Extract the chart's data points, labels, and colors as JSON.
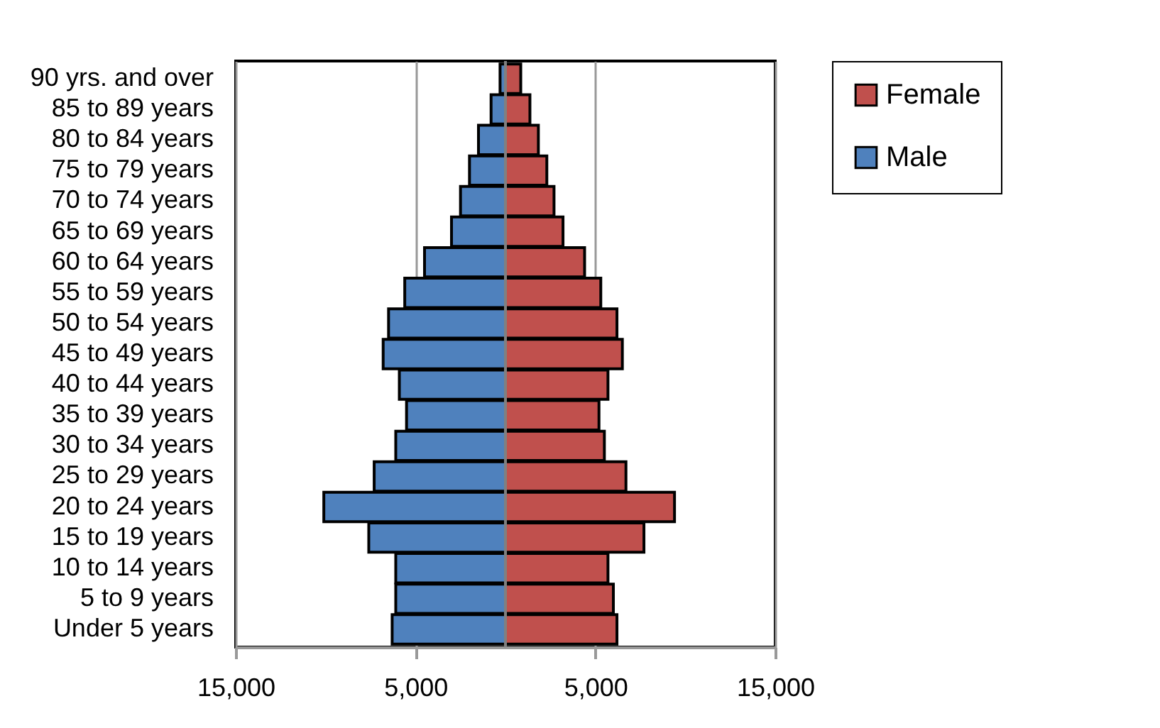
{
  "chart_data": {
    "type": "bar",
    "orientation": "horizontal",
    "categories": [
      "90 yrs. and over",
      "85 to 89 years",
      "80 to 84 years",
      "75 to 79 years",
      "70 to 74 years",
      "65 to 69 years",
      "60 to 64 years",
      "55 to 59 years",
      "50 to 54 years",
      "45 to 49 years",
      "40 to 44 years",
      "35 to 39 years",
      "30 to 34 years",
      "25 to 29 years",
      "20 to 24 years",
      "15 to 19 years",
      "10 to 14 years",
      "5 to 9 years",
      "Under 5 years"
    ],
    "series": [
      {
        "name": "Female",
        "color": "#c0504d",
        "values": [
          850,
          1360,
          1830,
          2300,
          2700,
          3200,
          4400,
          5300,
          6200,
          6500,
          5700,
          5200,
          5500,
          6700,
          9400,
          7700,
          5700,
          6000,
          6200
        ]
      },
      {
        "name": "Male",
        "color": "#4f81bd",
        "values": [
          -300,
          -800,
          -1500,
          -2000,
          -2500,
          -3000,
          -4500,
          -5600,
          -6500,
          -6800,
          -5900,
          -5500,
          -6100,
          -7300,
          -10100,
          -7600,
          -6100,
          -6100,
          -6300
        ]
      }
    ],
    "xlim": [
      -15000,
      15000
    ],
    "xticks": [
      {
        "value": -15000,
        "label": "15,000"
      },
      {
        "value": -5000,
        "label": "5,000"
      },
      {
        "value": 5000,
        "label": "5,000"
      },
      {
        "value": 15000,
        "label": "15,000"
      }
    ],
    "ref_lines": [
      {
        "axis": "x",
        "value": 0,
        "color": "#808080"
      }
    ],
    "grid": "x",
    "legend": "right",
    "stacked": true
  }
}
